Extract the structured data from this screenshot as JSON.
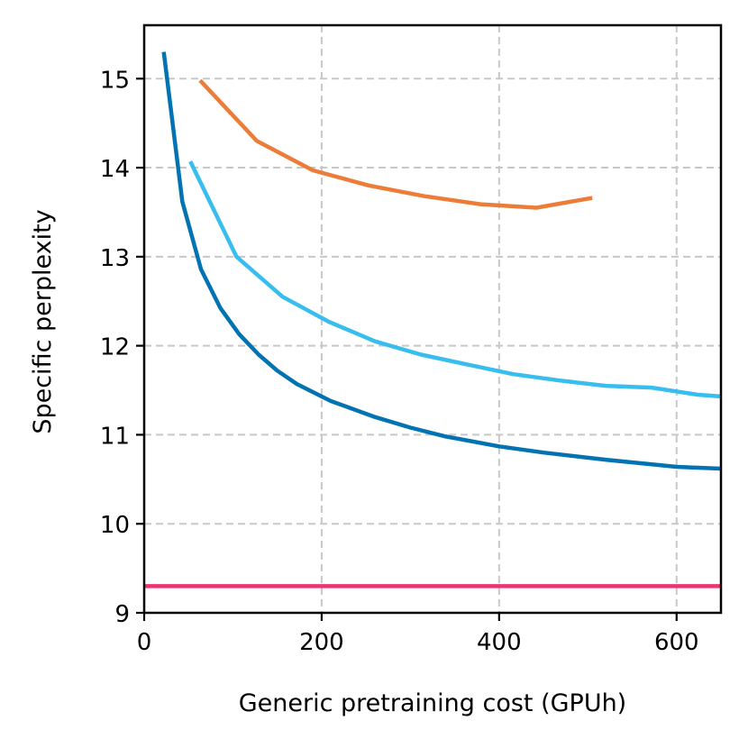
{
  "chart_data": {
    "type": "line",
    "title": "",
    "xlabel": "Generic pretraining cost (GPUh)",
    "ylabel": "Specific perplexity",
    "xlim": [
      0,
      650
    ],
    "ylim": [
      9,
      15.6
    ],
    "xticks": [
      0,
      200,
      400,
      600
    ],
    "yticks": [
      9,
      10,
      11,
      12,
      13,
      14,
      15
    ],
    "grid": true,
    "series": [
      {
        "name": "series-dark-blue",
        "color": "#0173b2",
        "x": [
          22,
          43,
          64,
          86,
          107,
          129,
          150,
          172,
          210,
          260,
          300,
          340,
          400,
          450,
          520,
          600,
          650
        ],
        "y": [
          15.3,
          13.62,
          12.86,
          12.42,
          12.13,
          11.9,
          11.72,
          11.57,
          11.38,
          11.2,
          11.08,
          10.98,
          10.87,
          10.8,
          10.72,
          10.64,
          10.62
        ]
      },
      {
        "name": "series-light-blue",
        "color": "#37bdee",
        "x": [
          52,
          104,
          156,
          208,
          260,
          312,
          364,
          416,
          468,
          520,
          572,
          624,
          650
        ],
        "y": [
          14.07,
          13.0,
          12.55,
          12.27,
          12.05,
          11.9,
          11.79,
          11.68,
          11.61,
          11.55,
          11.53,
          11.45,
          11.43
        ]
      },
      {
        "name": "series-orange",
        "color": "#ec7d38",
        "x": [
          63,
          127,
          190,
          253,
          316,
          379,
          442,
          505
        ],
        "y": [
          14.98,
          14.3,
          13.97,
          13.8,
          13.68,
          13.59,
          13.55,
          13.66
        ]
      },
      {
        "name": "series-baseline",
        "color": "#ea3473",
        "x": [
          0,
          650
        ],
        "y": [
          9.3,
          9.3
        ]
      }
    ]
  }
}
